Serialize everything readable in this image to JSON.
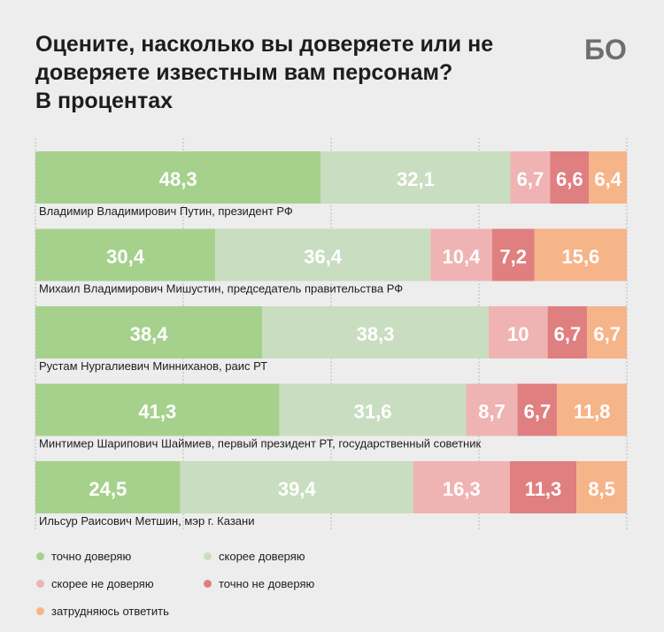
{
  "header": {
    "title_lines": [
      "Оцените, насколько вы доверяете или не",
      "доверяете известным вам персонам?",
      "В процентах"
    ],
    "logo": "БО"
  },
  "colors": {
    "trust": "#a6d18d",
    "rather_trust": "#c9ddc0",
    "rather_distrust": "#efb3b3",
    "distrust": "#e07f80",
    "undecided": "#f6b489"
  },
  "chart_data": {
    "type": "bar",
    "stacked": true,
    "orientation": "horizontal",
    "xlim": [
      0,
      100
    ],
    "grid": true,
    "legend_position": "bottom",
    "categories": [
      "Владимир Владимирович Путин, президент РФ",
      "Михаил Владимирович Мишустин, председатель правительства РФ",
      "Рустам Нургалиевич Минниханов, раис РТ",
      "Минтимер Шарипович Шаймиев, первый президент РТ, государственный советник",
      "Ильсур Раисович Метшин, мэр г. Казани"
    ],
    "series": [
      {
        "name": "точно доверяю",
        "values": [
          48.3,
          30.4,
          38.4,
          41.3,
          24.5
        ],
        "labels": [
          "48,3",
          "30,4",
          "38,4",
          "41,3",
          "24,5"
        ]
      },
      {
        "name": "скорее доверяю",
        "values": [
          32.1,
          36.4,
          38.3,
          31.6,
          39.4
        ],
        "labels": [
          "32,1",
          "36,4",
          "38,3",
          "31,6",
          "39,4"
        ]
      },
      {
        "name": "скорее не доверяю",
        "values": [
          6.7,
          10.4,
          10,
          8.7,
          16.3
        ],
        "labels": [
          "6,7",
          "10,4",
          "10",
          "8,7",
          "16,3"
        ]
      },
      {
        "name": "точно не доверяю",
        "values": [
          6.6,
          7.2,
          6.7,
          6.7,
          11.3
        ],
        "labels": [
          "6,6",
          "7,2",
          "6,7",
          "6,7",
          "11,3"
        ]
      },
      {
        "name": "затрудняюсь ответить",
        "values": [
          6.4,
          15.6,
          6.7,
          11.8,
          8.5
        ],
        "labels": [
          "6,4",
          "15,6",
          "6,7",
          "11,8",
          "8,5"
        ]
      }
    ]
  }
}
